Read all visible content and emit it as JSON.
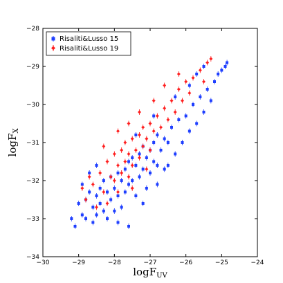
{
  "chart_data": {
    "type": "scatter",
    "xlabel": "logF",
    "xlabel_sub": "UV",
    "ylabel": "logF",
    "ylabel_sub": "X",
    "xlim": [
      -30,
      -24
    ],
    "ylim": [
      -34,
      -28
    ],
    "xticks": [
      -30,
      -29,
      -28,
      -27,
      -26,
      -25,
      -24
    ],
    "yticks": [
      -34,
      -33,
      -32,
      -31,
      -30,
      -29,
      -28
    ],
    "xtick_labels": [
      "−30",
      "−29",
      "−28",
      "−27",
      "−26",
      "−25",
      "−24"
    ],
    "ytick_labels": [
      "−34",
      "−33",
      "−32",
      "−31",
      "−30",
      "−29",
      "−28"
    ],
    "grid": false,
    "legend_position": "top-left",
    "series": [
      {
        "name": "Risaliti&Lusso 15",
        "color": "#1f3fff",
        "marker": "square",
        "points": [
          [
            -29.2,
            -33.0
          ],
          [
            -29.1,
            -33.2
          ],
          [
            -29.0,
            -32.6
          ],
          [
            -28.9,
            -32.9
          ],
          [
            -28.8,
            -32.5
          ],
          [
            -28.8,
            -33.0
          ],
          [
            -28.7,
            -32.3
          ],
          [
            -28.6,
            -32.7
          ],
          [
            -28.6,
            -33.1
          ],
          [
            -28.5,
            -32.4
          ],
          [
            -28.5,
            -32.9
          ],
          [
            -28.4,
            -32.2
          ],
          [
            -28.4,
            -32.6
          ],
          [
            -28.3,
            -32.0
          ],
          [
            -28.3,
            -32.8
          ],
          [
            -28.2,
            -32.3
          ],
          [
            -28.2,
            -33.0
          ],
          [
            -28.1,
            -31.9
          ],
          [
            -28.1,
            -32.5
          ],
          [
            -28.0,
            -32.2
          ],
          [
            -28.0,
            -32.8
          ],
          [
            -27.9,
            -31.8
          ],
          [
            -27.9,
            -32.4
          ],
          [
            -27.8,
            -32.0
          ],
          [
            -27.8,
            -32.7
          ],
          [
            -27.7,
            -31.7
          ],
          [
            -27.7,
            -32.3
          ],
          [
            -27.6,
            -31.5
          ],
          [
            -27.6,
            -32.1
          ],
          [
            -27.5,
            -31.4
          ],
          [
            -27.5,
            -32.0
          ],
          [
            -27.4,
            -31.6
          ],
          [
            -27.4,
            -32.4
          ],
          [
            -27.3,
            -31.3
          ],
          [
            -27.3,
            -31.9
          ],
          [
            -27.2,
            -31.1
          ],
          [
            -27.2,
            -31.7
          ],
          [
            -27.1,
            -31.4
          ],
          [
            -27.1,
            -32.2
          ],
          [
            -27.0,
            -31.2
          ],
          [
            -27.0,
            -31.8
          ],
          [
            -26.9,
            -31.0
          ],
          [
            -26.9,
            -31.5
          ],
          [
            -26.8,
            -30.8
          ],
          [
            -26.8,
            -31.6
          ],
          [
            -26.7,
            -31.2
          ],
          [
            -26.6,
            -30.9
          ],
          [
            -26.6,
            -31.7
          ],
          [
            -26.5,
            -31.0
          ],
          [
            -26.4,
            -30.6
          ],
          [
            -26.3,
            -31.3
          ],
          [
            -26.2,
            -30.4
          ],
          [
            -26.1,
            -31.0
          ],
          [
            -26.0,
            -30.3
          ],
          [
            -25.9,
            -30.7
          ],
          [
            -25.8,
            -30.0
          ],
          [
            -25.7,
            -30.5
          ],
          [
            -25.6,
            -29.8
          ],
          [
            -25.5,
            -30.2
          ],
          [
            -25.4,
            -29.6
          ],
          [
            -25.3,
            -29.9
          ],
          [
            -25.2,
            -29.4
          ],
          [
            -25.1,
            -29.2
          ],
          [
            -25.0,
            -29.1
          ],
          [
            -24.9,
            -29.0
          ],
          [
            -24.85,
            -28.9
          ],
          [
            -28.9,
            -32.1
          ],
          [
            -28.7,
            -31.8
          ],
          [
            -28.5,
            -31.6
          ],
          [
            -27.9,
            -33.1
          ],
          [
            -27.6,
            -33.2
          ],
          [
            -27.2,
            -32.6
          ],
          [
            -26.8,
            -32.1
          ],
          [
            -26.5,
            -31.6
          ],
          [
            -27.4,
            -30.8
          ],
          [
            -26.9,
            -30.3
          ],
          [
            -26.3,
            -29.8
          ],
          [
            -25.9,
            -29.5
          ],
          [
            -25.7,
            -29.2
          ],
          [
            -25.5,
            -29.0
          ]
        ]
      },
      {
        "name": "Risaliti&Lusso 19",
        "color": "#ff1f1f",
        "marker": "diamond",
        "points": [
          [
            -28.8,
            -32.5
          ],
          [
            -28.6,
            -32.1
          ],
          [
            -28.4,
            -31.8
          ],
          [
            -28.3,
            -32.3
          ],
          [
            -28.2,
            -31.5
          ],
          [
            -28.1,
            -31.9
          ],
          [
            -28.0,
            -31.3
          ],
          [
            -28.0,
            -32.0
          ],
          [
            -27.9,
            -31.6
          ],
          [
            -27.8,
            -31.2
          ],
          [
            -27.8,
            -31.8
          ],
          [
            -27.7,
            -31.0
          ],
          [
            -27.7,
            -31.5
          ],
          [
            -27.6,
            -31.3
          ],
          [
            -27.6,
            -31.9
          ],
          [
            -27.5,
            -30.9
          ],
          [
            -27.5,
            -31.6
          ],
          [
            -27.4,
            -31.2
          ],
          [
            -27.3,
            -30.8
          ],
          [
            -27.3,
            -31.4
          ],
          [
            -27.2,
            -30.6
          ],
          [
            -27.2,
            -31.1
          ],
          [
            -27.1,
            -30.9
          ],
          [
            -27.0,
            -30.5
          ],
          [
            -27.0,
            -31.2
          ],
          [
            -26.9,
            -30.7
          ],
          [
            -26.8,
            -30.3
          ],
          [
            -26.7,
            -30.6
          ],
          [
            -26.6,
            -30.1
          ],
          [
            -26.5,
            -30.4
          ],
          [
            -26.4,
            -29.9
          ],
          [
            -26.3,
            -30.2
          ],
          [
            -26.2,
            -29.6
          ],
          [
            -26.1,
            -29.9
          ],
          [
            -26.0,
            -29.4
          ],
          [
            -25.9,
            -29.7
          ],
          [
            -25.8,
            -29.3
          ],
          [
            -25.6,
            -29.1
          ],
          [
            -25.5,
            -29.4
          ],
          [
            -25.4,
            -28.9
          ],
          [
            -25.3,
            -28.8
          ],
          [
            -28.5,
            -32.7
          ],
          [
            -28.2,
            -32.6
          ],
          [
            -27.9,
            -32.3
          ],
          [
            -27.5,
            -32.2
          ],
          [
            -27.1,
            -31.7
          ],
          [
            -28.9,
            -32.2
          ],
          [
            -28.7,
            -31.9
          ],
          [
            -28.3,
            -31.1
          ],
          [
            -27.9,
            -30.7
          ],
          [
            -27.6,
            -30.5
          ],
          [
            -27.3,
            -30.2
          ],
          [
            -26.9,
            -29.9
          ],
          [
            -26.6,
            -29.5
          ],
          [
            -26.2,
            -29.2
          ]
        ]
      }
    ]
  }
}
